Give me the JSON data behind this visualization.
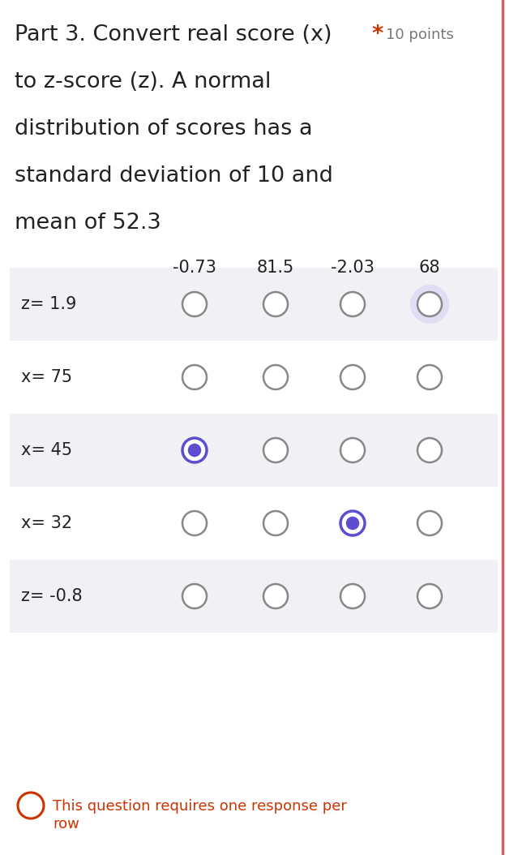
{
  "title_line1": "Part 3. Convert real score (x)",
  "title_star": "*",
  "title_points": "10 points",
  "title_line2": "to z-score (z). A normal",
  "title_line3": "distribution of scores has a",
  "title_line4": "standard deviation of 10 and",
  "title_line5": "mean of 52.3",
  "columns": [
    "-0.73",
    "81.5",
    "-2.03",
    "68"
  ],
  "rows": [
    "z= 1.9",
    "x= 75",
    "x= 45",
    "x= 32",
    "z= -0.8"
  ],
  "bg_color": "#ffffff",
  "row_bg_shaded": "#f0f0f5",
  "row_bg_plain": "#ffffff",
  "radio_empty_color": "#888888",
  "radio_filled_color": "#5b4fcf",
  "radio_hover_color": "#e0ddf5",
  "selected": {
    "x= 45": 0,
    "x= 32": 2
  },
  "hover_row": "z= 1.9",
  "hover_col": 3,
  "footer_text1": "This question requires one response per",
  "footer_text2": "row",
  "footer_color": "#cc3300",
  "border_right_color": "#cc6666",
  "title_color": "#222222",
  "fig_width": 6.39,
  "fig_height": 10.54,
  "dpi": 100
}
